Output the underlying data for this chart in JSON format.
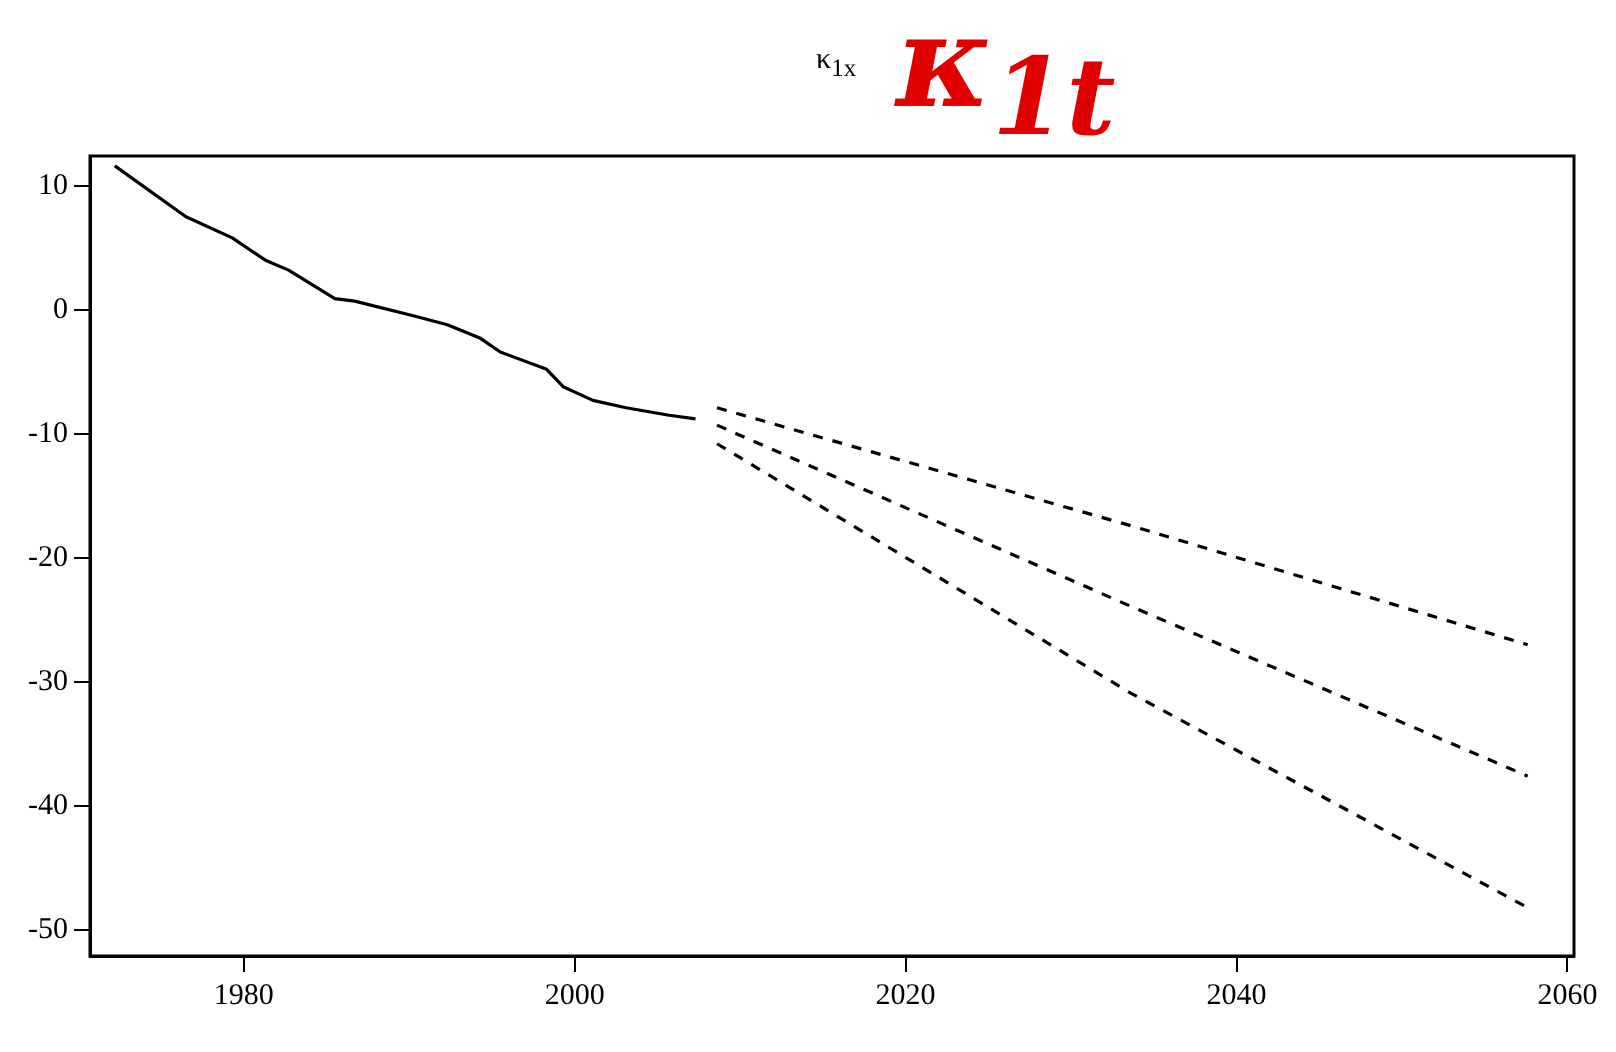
{
  "chart_data": {
    "type": "line",
    "title": "κ$_{1x}$",
    "annotations": [
      "κ$_{1t}$"
    ],
    "xlim": [
      1970.7,
      2060.4
    ],
    "xticks": [
      1980,
      2000,
      2020,
      2040,
      2060
    ],
    "ylim": [
      -52.1,
      12.4
    ],
    "yticks": [
      10,
      0,
      -10,
      -20,
      -30,
      -40,
      -50
    ],
    "grid": false,
    "legend": false,
    "marker": "none",
    "series": [
      {
        "color": "#000000",
        "line_style": "solid",
        "x": [
          1972.2,
          1976.5,
          1979.3,
          1981.3,
          1982.7,
          1985.5,
          1986.7,
          1990.3,
          1992.3,
          1994.3,
          1995.5,
          1998.3,
          1999.3,
          2001.1,
          2003.1,
          2005.7,
          2007.3
        ],
        "values": [
          11.6,
          7.5,
          5.8,
          4.0,
          3.2,
          0.9,
          0.7,
          -0.5,
          -1.2,
          -2.3,
          -3.4,
          -4.8,
          -6.2,
          -7.3,
          -7.9,
          -8.5,
          -8.8
        ]
      },
      {
        "color": "#000000",
        "line_style": "dashed",
        "x": [
          2008.6,
          2033.6,
          2057.6
        ],
        "values": [
          -7.9,
          -17.4,
          -27.0
        ]
      },
      {
        "color": "#000000",
        "line_style": "dashed",
        "x": [
          2008.6,
          2033.6,
          2057.6
        ],
        "values": [
          -9.3,
          -23.9,
          -37.6
        ]
      },
      {
        "color": "#000000",
        "line_style": "dashed",
        "x": [
          2008.6,
          2033.6,
          2057.6
        ],
        "values": [
          -10.8,
          -30.9,
          -48.2
        ]
      }
    ]
  }
}
